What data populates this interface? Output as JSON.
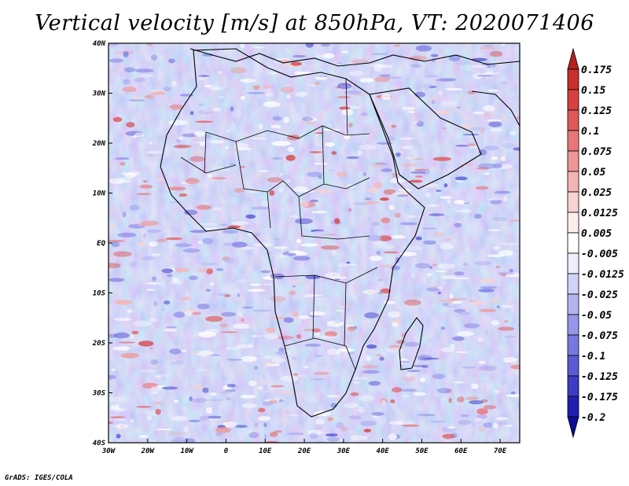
{
  "title": "Vertical velocity [m/s] at 850hPa, VT: 2020071406",
  "credit": "GrADS: IGES/COLA",
  "map": {
    "lat_labels": [
      "40N",
      "30N",
      "20N",
      "10N",
      "EQ",
      "10S",
      "20S",
      "30S",
      "40S"
    ],
    "lon_labels": [
      "30W",
      "20W",
      "10W",
      "0",
      "10E",
      "20E",
      "30E",
      "40E",
      "50E",
      "60E",
      "70E"
    ]
  },
  "colorbar": {
    "labels": [
      "0.175",
      "0.15",
      "0.125",
      "0.1",
      "0.075",
      "0.05",
      "0.025",
      "0.0125",
      "0.005",
      "-0.005",
      "-0.0125",
      "-0.025",
      "-0.05",
      "-0.075",
      "-0.1",
      "-0.125",
      "-0.175",
      "-0.2"
    ],
    "colors": [
      "#b22222",
      "#c8302e",
      "#d84040",
      "#e05a5a",
      "#e87878",
      "#ee9696",
      "#f4b4b4",
      "#f9d2d2",
      "#fdeeee",
      "#ffffff",
      "#eeeefd",
      "#d2d2f9",
      "#b4b4f2",
      "#9696ea",
      "#7878e0",
      "#5a5ad4",
      "#3c3cc4",
      "#2020b0",
      "#0c0c96"
    ]
  },
  "colors": {
    "positive": "#d84040",
    "negative": "#3c3cc4",
    "land_outline": "#000000"
  }
}
